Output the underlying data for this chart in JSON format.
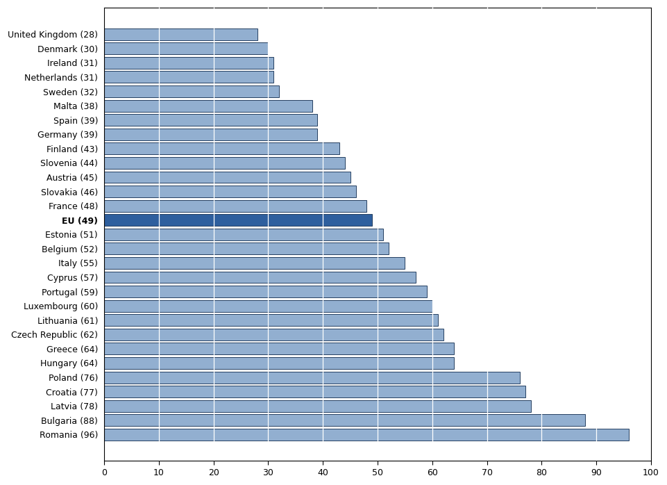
{
  "categories": [
    "United Kingdom (28)",
    "Denmark (30)",
    "Ireland (31)",
    "Netherlands (31)",
    "Sweden (32)",
    "Malta (38)",
    "Spain (39)",
    "Germany (39)",
    "Finland (43)",
    "Slovenia (44)",
    "Austria (45)",
    "Slovakia (46)",
    "France (48)",
    "EU (49)",
    "Estonia (51)",
    "Belgium (52)",
    "Italy (55)",
    "Cyprus (57)",
    "Portugal (59)",
    "Luxembourg (60)",
    "Lithuania (61)",
    "Czech Republic (62)",
    "Greece (64)",
    "Hungary (64)",
    "Poland (76)",
    "Croatia (77)",
    "Latvia (78)",
    "Bulgaria (88)",
    "Romania (96)"
  ],
  "values": [
    28,
    30,
    31,
    31,
    32,
    38,
    39,
    39,
    43,
    44,
    45,
    46,
    48,
    49,
    51,
    52,
    55,
    57,
    59,
    60,
    61,
    62,
    64,
    64,
    76,
    77,
    78,
    88,
    96
  ],
  "bar_color_default": "#92afd0",
  "bar_color_eu": "#2e5f9e",
  "eu_label": "EU (49)",
  "xlim": [
    0,
    100
  ],
  "xticks": [
    0,
    10,
    20,
    30,
    40,
    50,
    60,
    70,
    80,
    90,
    100
  ],
  "background_color": "#ffffff",
  "bar_edge_color": "#243f60",
  "grid_line_color": "#ffffff",
  "figsize": [
    9.61,
    6.98
  ],
  "dpi": 100,
  "bar_height": 0.82
}
